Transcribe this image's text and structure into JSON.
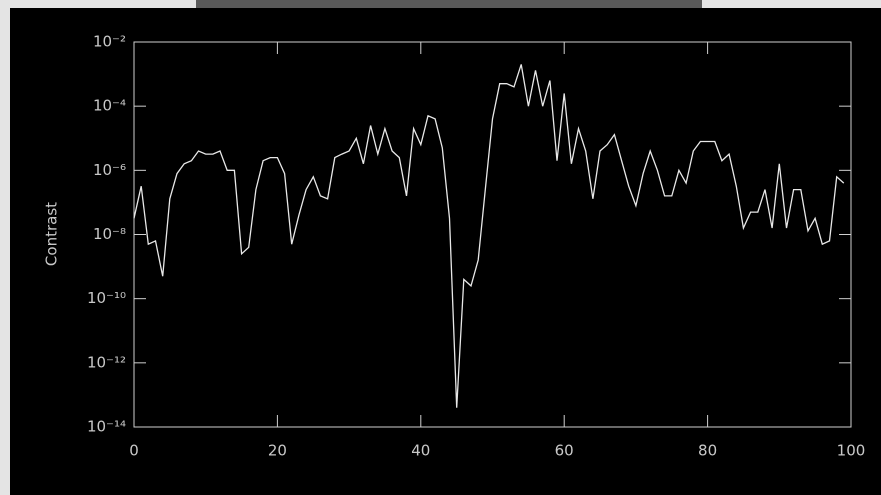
{
  "chart_data": {
    "type": "line",
    "y_label": "Contrast",
    "color": "#e8e8e8",
    "log_y": true,
    "xlim": [
      0,
      100
    ],
    "xticks": [
      0,
      20,
      40,
      60,
      80,
      100
    ],
    "ylim": [
      1e-14,
      0.01
    ],
    "yticks": [
      {
        "value": 1e-14,
        "label": "10⁻¹⁴"
      },
      {
        "value": 1e-12,
        "label": "10⁻¹²"
      },
      {
        "value": 1e-10,
        "label": "10⁻¹⁰"
      },
      {
        "value": 1e-08,
        "label": "10⁻⁸"
      },
      {
        "value": 1e-06,
        "label": "10⁻⁶"
      },
      {
        "value": 0.0001,
        "label": "10⁻⁴"
      },
      {
        "value": 0.01,
        "label": "10⁻²"
      }
    ],
    "x": [
      0,
      1,
      2,
      3,
      4,
      5,
      6,
      7,
      8,
      9,
      10,
      11,
      12,
      13,
      14,
      15,
      16,
      17,
      18,
      19,
      20,
      21,
      22,
      23,
      24,
      25,
      26,
      27,
      28,
      29,
      30,
      31,
      32,
      33,
      34,
      35,
      36,
      37,
      38,
      39,
      40,
      41,
      42,
      43,
      44,
      45,
      46,
      47,
      48,
      49,
      50,
      51,
      52,
      53,
      54,
      55,
      56,
      57,
      58,
      59,
      60,
      61,
      62,
      63,
      64,
      65,
      66,
      67,
      68,
      69,
      70,
      71,
      72,
      73,
      74,
      75,
      76,
      77,
      78,
      79,
      80,
      81,
      82,
      83,
      84,
      85,
      86,
      87,
      88,
      89,
      90,
      91,
      92,
      93,
      94,
      95,
      96,
      97,
      98,
      99
    ],
    "values": [
      3.2e-08,
      3.2e-07,
      5e-09,
      6.3e-09,
      5e-10,
      1.3e-07,
      7.9e-07,
      1.6e-06,
      2e-06,
      4e-06,
      3.2e-06,
      3.2e-06,
      4e-06,
      1e-06,
      1e-06,
      2.5e-09,
      4e-09,
      2.5e-07,
      2e-06,
      2.5e-06,
      2.5e-06,
      7.9e-07,
      5e-09,
      4e-08,
      2.5e-07,
      6.3e-07,
      1.6e-07,
      1.3e-07,
      2.5e-06,
      3.2e-06,
      4e-06,
      1e-05,
      1.6e-06,
      2.5e-05,
      3.2e-06,
      2e-05,
      4e-06,
      2.5e-06,
      1.6e-07,
      2e-05,
      6.3e-06,
      5e-05,
      4e-05,
      5e-06,
      3.2e-08,
      4e-14,
      4e-10,
      2.5e-10,
      1.6e-09,
      2.5e-07,
      4e-05,
      0.0005,
      0.0005,
      0.0004,
      0.002,
      0.0001,
      0.0013,
      0.0001,
      0.00063,
      2e-06,
      0.00025,
      1.6e-06,
      2e-05,
      4e-06,
      1.3e-07,
      4e-06,
      6.3e-06,
      1.3e-05,
      2e-06,
      3.2e-07,
      7.9e-08,
      7.9e-07,
      4e-06,
      1e-06,
      1.6e-07,
      1.6e-07,
      1e-06,
      4e-07,
      4e-06,
      7.9e-06,
      7.9e-06,
      7.9e-06,
      2e-06,
      3.2e-06,
      3.2e-07,
      1.6e-08,
      5e-08,
      5e-08,
      2.5e-07,
      1.6e-08,
      1.6e-06,
      1.6e-08,
      2.5e-07,
      2.5e-07,
      1.3e-08,
      3.2e-08,
      5e-09,
      6.3e-09,
      6.3e-07,
      4e-07
    ]
  }
}
